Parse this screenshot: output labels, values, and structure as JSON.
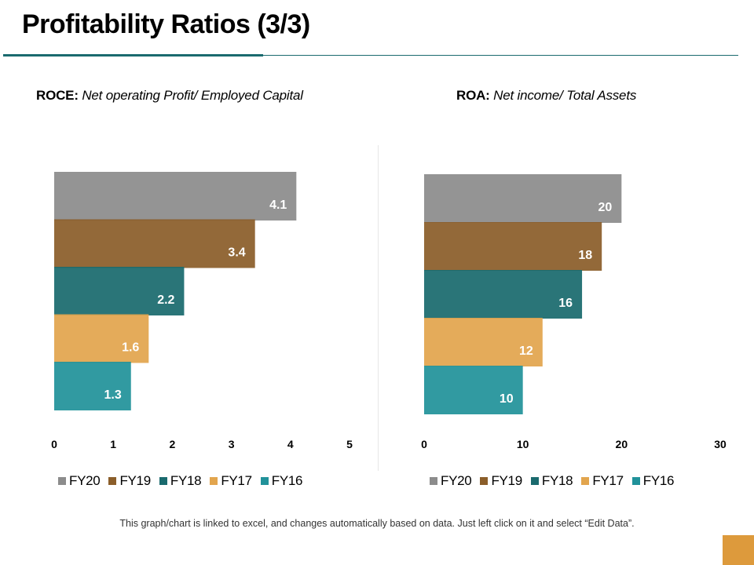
{
  "title": "Profitability Ratios (3/3)",
  "footnote": "This graph/chart is linked to excel, and changes automatically based on data. Just left click on it and select “Edit Data”.",
  "colors": {
    "FY20": "#8c8c8c",
    "FY19": "#8b5e2a",
    "FY18": "#1a6a6e",
    "FY17": "#e2a54e",
    "FY16": "#21929a",
    "rule": "#1a6a6e",
    "corner": "#dd9a3c"
  },
  "chart_data": [
    {
      "type": "bar",
      "orientation": "horizontal",
      "title_bold": "ROCE:",
      "title_italic": "Net operating Profit/ Employed Capital",
      "categories": [
        "FY20",
        "FY19",
        "FY18",
        "FY17",
        "FY16"
      ],
      "values": [
        4.1,
        3.4,
        2.2,
        1.6,
        1.3
      ],
      "labels": [
        "4.1",
        "3.4",
        "2.2",
        "1.6",
        "1.3"
      ],
      "xlim": [
        0,
        5
      ],
      "ticks": [
        "0",
        "1",
        "2",
        "3",
        "4",
        "5"
      ],
      "legend": [
        "FY20",
        "FY19",
        "FY18",
        "FY17",
        "FY16"
      ],
      "legend_position": "bottom"
    },
    {
      "type": "bar",
      "orientation": "horizontal",
      "title_bold": "ROA:",
      "title_italic": "Net income/ Total Assets",
      "categories": [
        "FY20",
        "FY19",
        "FY18",
        "FY17",
        "FY16"
      ],
      "values": [
        20,
        18,
        16,
        12,
        10
      ],
      "labels": [
        "20",
        "18",
        "16",
        "12",
        "10"
      ],
      "xlim": [
        0,
        30
      ],
      "ticks": [
        "0",
        "10",
        "20",
        "30"
      ],
      "legend": [
        "FY20",
        "FY19",
        "FY18",
        "FY17",
        "FY16"
      ],
      "legend_position": "bottom"
    }
  ]
}
